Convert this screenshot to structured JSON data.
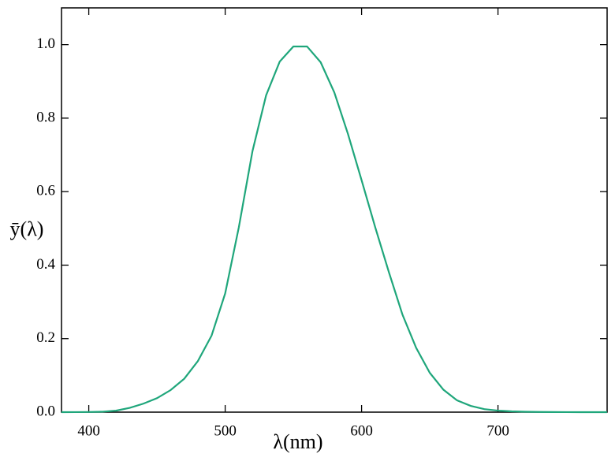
{
  "chart_data": {
    "type": "line",
    "xlabel": "λ(nm)",
    "ylabel": "ȳ(λ)",
    "x": [
      380,
      390,
      400,
      410,
      420,
      430,
      440,
      450,
      460,
      470,
      480,
      490,
      500,
      510,
      520,
      530,
      540,
      550,
      560,
      570,
      580,
      590,
      600,
      610,
      620,
      630,
      640,
      650,
      660,
      670,
      680,
      690,
      700,
      710,
      720,
      730,
      740,
      750,
      760,
      770,
      780
    ],
    "series": [
      {
        "color": "#1fa67b",
        "values": [
          4e-05,
          0.00012,
          0.0004,
          0.0012,
          0.004,
          0.0116,
          0.023,
          0.038,
          0.06,
          0.091,
          0.139,
          0.208,
          0.323,
          0.503,
          0.71,
          0.862,
          0.954,
          0.995,
          0.995,
          0.952,
          0.87,
          0.757,
          0.631,
          0.503,
          0.381,
          0.265,
          0.175,
          0.107,
          0.061,
          0.032,
          0.017,
          0.0082,
          0.0041,
          0.0021,
          0.001,
          0.0005,
          0.00025,
          0.00012,
          6e-05,
          3e-05,
          1.5e-05
        ]
      }
    ],
    "xlim": [
      380,
      780
    ],
    "xticks": [
      400,
      500,
      600,
      700
    ],
    "ylim": [
      0,
      1.1
    ],
    "yticks": [
      {
        "value": 0,
        "label": "0.0"
      },
      0.2,
      0.4,
      0.6,
      0.8,
      {
        "value": 1,
        "label": "1.0"
      }
    ]
  }
}
